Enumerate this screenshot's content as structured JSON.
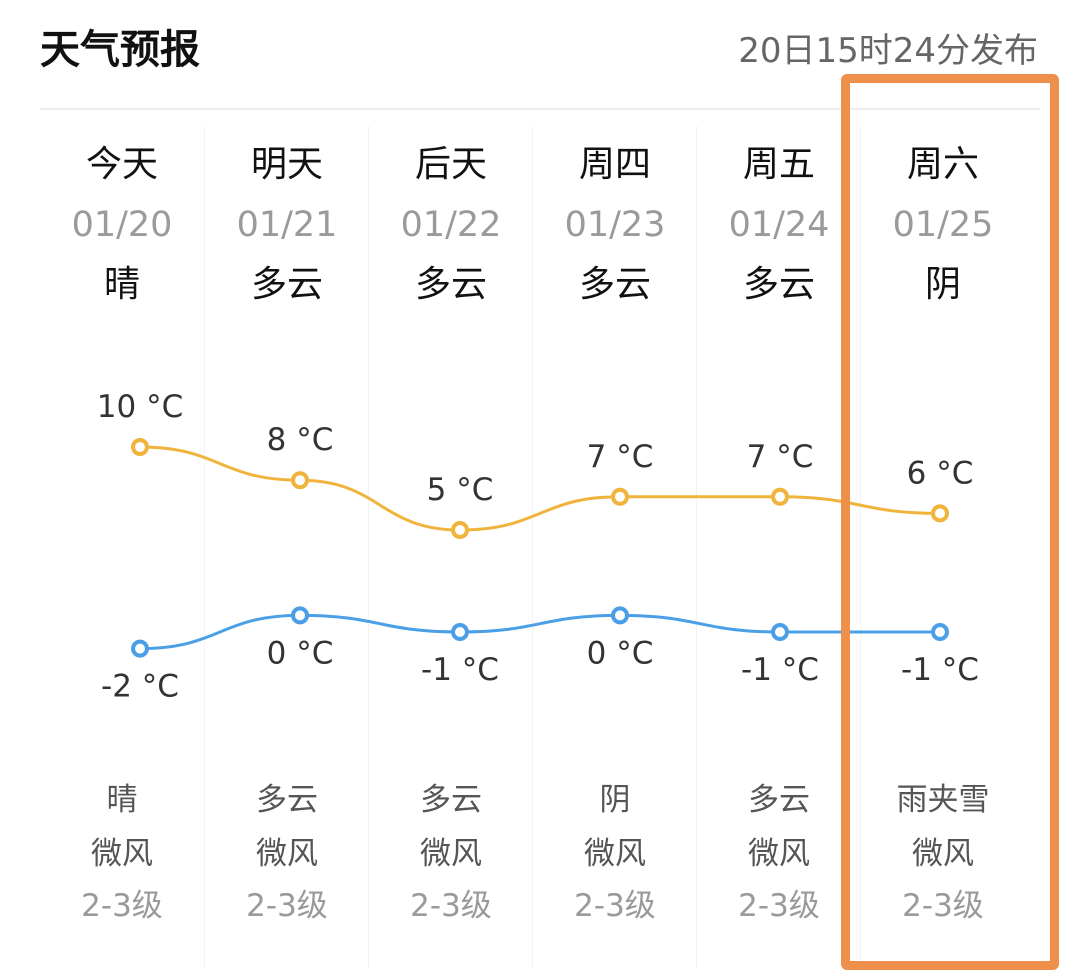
{
  "header": {
    "title": "天气预报",
    "publish_time": "20日15时24分发布"
  },
  "colors": {
    "high_line": "#f0b43c",
    "low_line": "#4a9fe6",
    "highlight_frame": "#ef8f4c"
  },
  "highlighted_day": "周六",
  "days": [
    {
      "day": "今天",
      "date": "01/20",
      "cond": "晴",
      "high": 10,
      "high_label": "10 °C",
      "low": -2,
      "low_label": "-2 °C",
      "night_cond": "晴",
      "wind": "微风",
      "level": "2-3级"
    },
    {
      "day": "明天",
      "date": "01/21",
      "cond": "多云",
      "high": 8,
      "high_label": "8 °C",
      "low": 0,
      "low_label": "0 °C",
      "night_cond": "多云",
      "wind": "微风",
      "level": "2-3级"
    },
    {
      "day": "后天",
      "date": "01/22",
      "cond": "多云",
      "high": 5,
      "high_label": "5 °C",
      "low": -1,
      "low_label": "-1 °C",
      "night_cond": "多云",
      "wind": "微风",
      "level": "2-3级"
    },
    {
      "day": "周四",
      "date": "01/23",
      "cond": "多云",
      "high": 7,
      "high_label": "7 °C",
      "low": 0,
      "low_label": "0 °C",
      "night_cond": "阴",
      "wind": "微风",
      "level": "2-3级"
    },
    {
      "day": "周五",
      "date": "01/24",
      "cond": "多云",
      "high": 7,
      "high_label": "7 °C",
      "low": -1,
      "low_label": "-1 °C",
      "night_cond": "多云",
      "wind": "微风",
      "level": "2-3级"
    },
    {
      "day": "周六",
      "date": "01/25",
      "cond": "阴",
      "high": 6,
      "high_label": "6 °C",
      "low": -1,
      "low_label": "-1 °C",
      "night_cond": "雨夹雪",
      "wind": "微风",
      "level": "2-3级"
    }
  ]
}
